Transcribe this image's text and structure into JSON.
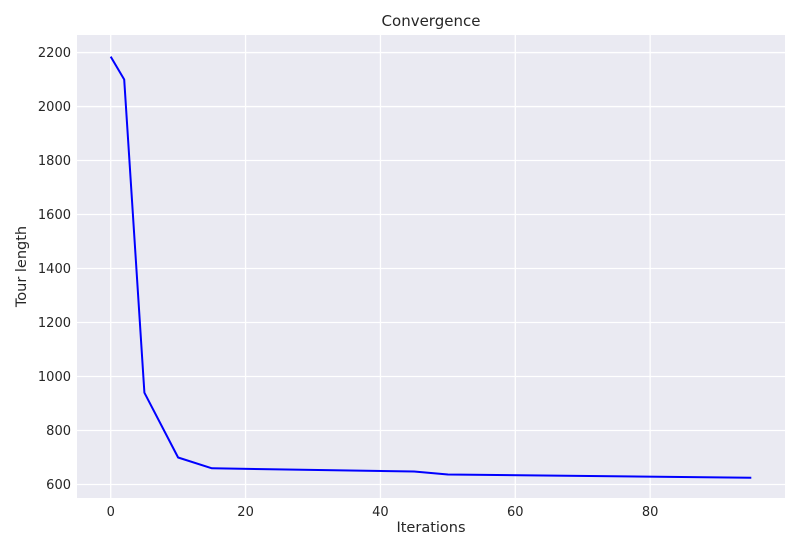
{
  "chart_data": {
    "type": "line",
    "title": "Convergence",
    "xlabel": "Iterations",
    "ylabel": "Tour length",
    "xlim": [
      -5,
      100
    ],
    "ylim": [
      550,
      2265
    ],
    "xticks": [
      0,
      20,
      40,
      60,
      80
    ],
    "yticks": [
      600,
      800,
      1000,
      1200,
      1400,
      1600,
      1800,
      2000,
      2200
    ],
    "grid": true,
    "background_color": "#eaeaf2",
    "grid_color": "#ffffff",
    "line_color": "#0000ff",
    "series": [
      {
        "x": [
          0,
          2,
          5,
          10,
          15,
          45,
          50,
          95
        ],
        "y": [
          2185,
          2100,
          940,
          700,
          660,
          648,
          637,
          625
        ]
      }
    ]
  }
}
